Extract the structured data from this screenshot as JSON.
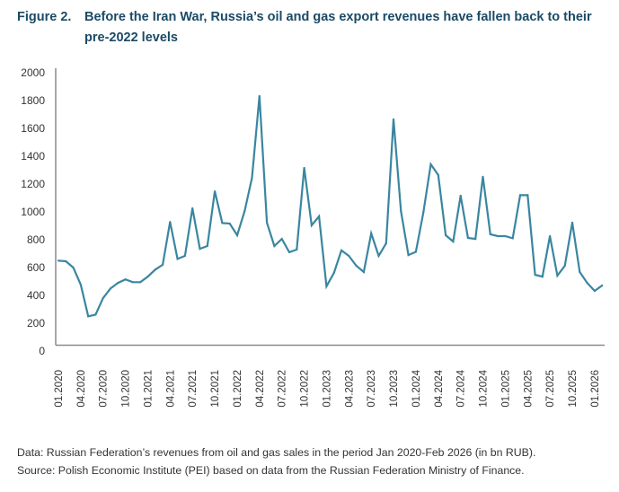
{
  "title": {
    "label": "Figure 2.",
    "text": "Before the Iran War, Russia’s oil and gas export revenues have fallen back to their pre-2022 levels"
  },
  "notes": {
    "data": "Data: Russian Federation’s revenues from oil and gas sales in the period Jan 2020-Feb 2026 (in bn RUB).",
    "source": "Source: Polish Economic Institute (PEI) based on data from the Russian Federation Ministry of Finance."
  },
  "colors": {
    "title": "#1b4a66",
    "line": "#3a86a0",
    "axis": "#8a8a8a"
  },
  "chart_data": {
    "type": "line",
    "title": "Before the Iran War, Russia’s oil and gas export revenues have fallen back to their pre-2022 levels",
    "xlabel": "",
    "ylabel": "",
    "ylim": [
      0,
      2000
    ],
    "yticks": [
      0,
      200,
      400,
      600,
      800,
      1000,
      1200,
      1400,
      1600,
      1800,
      2000
    ],
    "xtick_labels": [
      "01.2020",
      "04.2020",
      "07.2020",
      "10.2020",
      "01.2021",
      "04.2021",
      "07.2021",
      "10.2021",
      "01.2022",
      "04.2022",
      "07.2022",
      "10.2022",
      "01.2023",
      "04.2023",
      "07.2023",
      "10.2023",
      "01.2024",
      "04.2024",
      "07.2024",
      "10.2024",
      "01.2025",
      "04.2025",
      "07.2025",
      "10.2025",
      "01.2026"
    ],
    "grid": false,
    "legend": "none",
    "series": [
      {
        "name": "Oil and gas revenues (bn RUB)",
        "start": "01.2020",
        "frequency": "monthly",
        "values": [
          650,
          645,
          600,
          477,
          250,
          262,
          380,
          450,
          490,
          515,
          495,
          495,
          535,
          585,
          620,
          928,
          662,
          684,
          1026,
          735,
          755,
          1148,
          920,
          916,
          832,
          1006,
          1245,
          1832,
          922,
          755,
          806,
          710,
          729,
          1316,
          903,
          968,
          465,
          561,
          723,
          684,
          613,
          568,
          845,
          684,
          774,
          1665,
          1006,
          690,
          713,
          994,
          1342,
          1265,
          832,
          787,
          1116,
          813,
          806,
          1252,
          839,
          826,
          826,
          810,
          1120,
          1120,
          548,
          535,
          826,
          542,
          613,
          923,
          568,
          490,
          432,
          471
        ]
      }
    ]
  }
}
